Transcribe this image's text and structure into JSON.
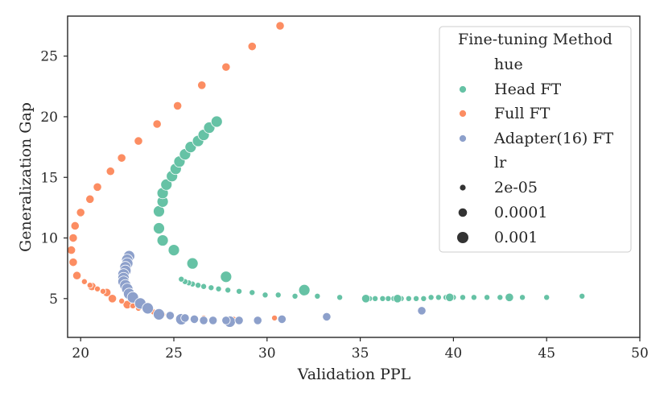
{
  "chart_data": {
    "type": "scatter",
    "xlabel": "Validation PPL",
    "ylabel": "Generalization Gap",
    "xlim": [
      19.3,
      50
    ],
    "ylim": [
      1.8,
      28.3
    ],
    "xticks": [
      20,
      25,
      30,
      35,
      40,
      45,
      50
    ],
    "yticks": [
      5,
      10,
      15,
      20,
      25
    ],
    "grid": false,
    "legend": {
      "title": "Fine-tuning Method",
      "placement": "top-right",
      "hue_header": "hue",
      "size_header": "lr",
      "hue_entries": [
        {
          "label": "Head FT",
          "color": "#66c2a5"
        },
        {
          "label": "Full FT",
          "color": "#fc8d62"
        },
        {
          "label": "Adapter(16) FT",
          "color": "#8da0cb"
        }
      ],
      "size_entries": [
        {
          "label": "2e-05",
          "lr": "2e-05"
        },
        {
          "label": "0.0001",
          "lr": "0.0001"
        },
        {
          "label": "0.001",
          "lr": "0.001"
        }
      ]
    },
    "series": [
      {
        "name": "Head FT",
        "color": "#66c2a5",
        "points": [
          {
            "x": 46.9,
            "y": 5.2,
            "lr": "2e-05"
          },
          {
            "x": 45.0,
            "y": 5.1,
            "lr": "2e-05"
          },
          {
            "x": 43.7,
            "y": 5.1,
            "lr": "2e-05"
          },
          {
            "x": 42.5,
            "y": 5.1,
            "lr": "2e-05"
          },
          {
            "x": 41.8,
            "y": 5.1,
            "lr": "2e-05"
          },
          {
            "x": 41.1,
            "y": 5.1,
            "lr": "2e-05"
          },
          {
            "x": 40.5,
            "y": 5.1,
            "lr": "2e-05"
          },
          {
            "x": 40.0,
            "y": 5.1,
            "lr": "2e-05"
          },
          {
            "x": 39.6,
            "y": 5.1,
            "lr": "2e-05"
          },
          {
            "x": 39.2,
            "y": 5.1,
            "lr": "2e-05"
          },
          {
            "x": 38.8,
            "y": 5.1,
            "lr": "2e-05"
          },
          {
            "x": 38.4,
            "y": 5.0,
            "lr": "2e-05"
          },
          {
            "x": 38.0,
            "y": 5.0,
            "lr": "2e-05"
          },
          {
            "x": 37.6,
            "y": 5.0,
            "lr": "2e-05"
          },
          {
            "x": 37.2,
            "y": 5.0,
            "lr": "2e-05"
          },
          {
            "x": 36.8,
            "y": 5.0,
            "lr": "2e-05"
          },
          {
            "x": 36.5,
            "y": 5.0,
            "lr": "2e-05"
          },
          {
            "x": 36.2,
            "y": 5.0,
            "lr": "2e-05"
          },
          {
            "x": 35.8,
            "y": 5.0,
            "lr": "2e-05"
          },
          {
            "x": 35.5,
            "y": 5.0,
            "lr": "2e-05"
          },
          {
            "x": 35.2,
            "y": 5.0,
            "lr": "2e-05"
          },
          {
            "x": 33.9,
            "y": 5.1,
            "lr": "2e-05"
          },
          {
            "x": 32.7,
            "y": 5.2,
            "lr": "2e-05"
          },
          {
            "x": 31.5,
            "y": 5.2,
            "lr": "2e-05"
          },
          {
            "x": 30.6,
            "y": 5.3,
            "lr": "2e-05"
          },
          {
            "x": 29.9,
            "y": 5.3,
            "lr": "2e-05"
          },
          {
            "x": 29.2,
            "y": 5.5,
            "lr": "2e-05"
          },
          {
            "x": 28.5,
            "y": 5.6,
            "lr": "2e-05"
          },
          {
            "x": 27.9,
            "y": 5.7,
            "lr": "2e-05"
          },
          {
            "x": 27.4,
            "y": 5.8,
            "lr": "2e-05"
          },
          {
            "x": 27.0,
            "y": 5.9,
            "lr": "2e-05"
          },
          {
            "x": 26.6,
            "y": 6.0,
            "lr": "2e-05"
          },
          {
            "x": 26.3,
            "y": 6.1,
            "lr": "2e-05"
          },
          {
            "x": 26.0,
            "y": 6.2,
            "lr": "2e-05"
          },
          {
            "x": 25.8,
            "y": 6.3,
            "lr": "2e-05"
          },
          {
            "x": 25.6,
            "y": 6.4,
            "lr": "2e-05"
          },
          {
            "x": 25.4,
            "y": 6.6,
            "lr": "2e-05"
          },
          {
            "x": 43.0,
            "y": 5.1,
            "lr": "0.0001"
          },
          {
            "x": 39.8,
            "y": 5.1,
            "lr": "0.0001"
          },
          {
            "x": 37.0,
            "y": 5.0,
            "lr": "0.0001"
          },
          {
            "x": 35.3,
            "y": 5.0,
            "lr": "0.0001"
          },
          {
            "x": 32.0,
            "y": 5.7,
            "lr": "0.001"
          },
          {
            "x": 27.8,
            "y": 6.8,
            "lr": "0.001"
          },
          {
            "x": 26.0,
            "y": 7.9,
            "lr": "0.001"
          },
          {
            "x": 25.0,
            "y": 9.0,
            "lr": "0.001"
          },
          {
            "x": 24.4,
            "y": 9.8,
            "lr": "0.001"
          },
          {
            "x": 24.2,
            "y": 10.8,
            "lr": "0.001"
          },
          {
            "x": 24.2,
            "y": 12.2,
            "lr": "0.001"
          },
          {
            "x": 24.4,
            "y": 13.0,
            "lr": "0.001"
          },
          {
            "x": 24.4,
            "y": 13.7,
            "lr": "0.001"
          },
          {
            "x": 24.6,
            "y": 14.4,
            "lr": "0.001"
          },
          {
            "x": 24.9,
            "y": 15.1,
            "lr": "0.001"
          },
          {
            "x": 25.1,
            "y": 15.7,
            "lr": "0.001"
          },
          {
            "x": 25.3,
            "y": 16.3,
            "lr": "0.001"
          },
          {
            "x": 25.6,
            "y": 16.9,
            "lr": "0.001"
          },
          {
            "x": 25.9,
            "y": 17.5,
            "lr": "0.001"
          },
          {
            "x": 26.3,
            "y": 18.0,
            "lr": "0.001"
          },
          {
            "x": 26.6,
            "y": 18.5,
            "lr": "0.001"
          },
          {
            "x": 26.9,
            "y": 19.1,
            "lr": "0.001"
          },
          {
            "x": 27.3,
            "y": 19.6,
            "lr": "0.001"
          }
        ]
      },
      {
        "name": "Full FT",
        "color": "#fc8d62",
        "points": [
          {
            "x": 30.7,
            "y": 27.5,
            "lr": "0.0001"
          },
          {
            "x": 29.2,
            "y": 25.8,
            "lr": "0.0001"
          },
          {
            "x": 27.8,
            "y": 24.1,
            "lr": "0.0001"
          },
          {
            "x": 26.5,
            "y": 22.6,
            "lr": "0.0001"
          },
          {
            "x": 25.2,
            "y": 20.9,
            "lr": "0.0001"
          },
          {
            "x": 24.1,
            "y": 19.4,
            "lr": "0.0001"
          },
          {
            "x": 23.1,
            "y": 18.0,
            "lr": "0.0001"
          },
          {
            "x": 22.2,
            "y": 16.6,
            "lr": "0.0001"
          },
          {
            "x": 21.6,
            "y": 15.5,
            "lr": "0.0001"
          },
          {
            "x": 20.9,
            "y": 14.2,
            "lr": "0.0001"
          },
          {
            "x": 20.5,
            "y": 13.2,
            "lr": "0.0001"
          },
          {
            "x": 20.0,
            "y": 12.1,
            "lr": "0.0001"
          },
          {
            "x": 19.7,
            "y": 11.0,
            "lr": "0.0001"
          },
          {
            "x": 19.6,
            "y": 10.0,
            "lr": "0.0001"
          },
          {
            "x": 19.5,
            "y": 9.0,
            "lr": "0.0001"
          },
          {
            "x": 19.6,
            "y": 8.0,
            "lr": "0.0001"
          },
          {
            "x": 19.8,
            "y": 6.9,
            "lr": "0.0001"
          },
          {
            "x": 20.6,
            "y": 6.0,
            "lr": "0.0001"
          },
          {
            "x": 21.4,
            "y": 5.5,
            "lr": "0.0001"
          },
          {
            "x": 21.7,
            "y": 5.0,
            "lr": "0.0001"
          },
          {
            "x": 22.5,
            "y": 4.5,
            "lr": "0.0001"
          },
          {
            "x": 20.2,
            "y": 6.4,
            "lr": "2e-05"
          },
          {
            "x": 20.5,
            "y": 6.1,
            "lr": "2e-05"
          },
          {
            "x": 20.9,
            "y": 5.8,
            "lr": "2e-05"
          },
          {
            "x": 21.2,
            "y": 5.6,
            "lr": "2e-05"
          },
          {
            "x": 22.2,
            "y": 4.8,
            "lr": "2e-05"
          },
          {
            "x": 22.8,
            "y": 4.4,
            "lr": "2e-05"
          },
          {
            "x": 23.1,
            "y": 4.2,
            "lr": "2e-05"
          },
          {
            "x": 23.5,
            "y": 4.0,
            "lr": "2e-05"
          },
          {
            "x": 23.9,
            "y": 3.9,
            "lr": "2e-05"
          },
          {
            "x": 24.4,
            "y": 3.7,
            "lr": "2e-05"
          },
          {
            "x": 24.9,
            "y": 3.6,
            "lr": "2e-05"
          },
          {
            "x": 25.5,
            "y": 3.5,
            "lr": "2e-05"
          },
          {
            "x": 26.6,
            "y": 3.4,
            "lr": "2e-05"
          },
          {
            "x": 28.2,
            "y": 3.3,
            "lr": "2e-05"
          },
          {
            "x": 30.4,
            "y": 3.4,
            "lr": "2e-05"
          }
        ]
      },
      {
        "name": "Adapter(16) FT",
        "color": "#8da0cb",
        "points": [
          {
            "x": 22.6,
            "y": 8.5,
            "lr": "0.001"
          },
          {
            "x": 22.5,
            "y": 8.2,
            "lr": "0.001"
          },
          {
            "x": 22.5,
            "y": 7.9,
            "lr": "0.001"
          },
          {
            "x": 22.4,
            "y": 7.6,
            "lr": "0.001"
          },
          {
            "x": 22.4,
            "y": 7.3,
            "lr": "0.001"
          },
          {
            "x": 22.3,
            "y": 7.0,
            "lr": "0.001"
          },
          {
            "x": 22.3,
            "y": 6.7,
            "lr": "0.001"
          },
          {
            "x": 22.3,
            "y": 6.4,
            "lr": "0.001"
          },
          {
            "x": 22.4,
            "y": 6.1,
            "lr": "0.001"
          },
          {
            "x": 22.5,
            "y": 5.8,
            "lr": "0.001"
          },
          {
            "x": 22.6,
            "y": 5.4,
            "lr": "0.001"
          },
          {
            "x": 22.8,
            "y": 5.1,
            "lr": "0.001"
          },
          {
            "x": 23.2,
            "y": 4.6,
            "lr": "0.001"
          },
          {
            "x": 23.6,
            "y": 4.2,
            "lr": "0.001"
          },
          {
            "x": 24.2,
            "y": 3.7,
            "lr": "0.001"
          },
          {
            "x": 25.4,
            "y": 3.3,
            "lr": "0.001"
          },
          {
            "x": 28.0,
            "y": 3.1,
            "lr": "0.001"
          },
          {
            "x": 24.8,
            "y": 3.6,
            "lr": "0.0001"
          },
          {
            "x": 25.6,
            "y": 3.4,
            "lr": "0.0001"
          },
          {
            "x": 26.1,
            "y": 3.3,
            "lr": "0.0001"
          },
          {
            "x": 26.6,
            "y": 3.2,
            "lr": "0.0001"
          },
          {
            "x": 27.1,
            "y": 3.2,
            "lr": "0.0001"
          },
          {
            "x": 27.8,
            "y": 3.2,
            "lr": "0.0001"
          },
          {
            "x": 28.5,
            "y": 3.2,
            "lr": "0.0001"
          },
          {
            "x": 29.5,
            "y": 3.2,
            "lr": "0.0001"
          },
          {
            "x": 30.8,
            "y": 3.3,
            "lr": "0.0001"
          },
          {
            "x": 33.2,
            "y": 3.5,
            "lr": "0.0001"
          },
          {
            "x": 38.3,
            "y": 4.0,
            "lr": "0.0001"
          }
        ]
      }
    ]
  }
}
